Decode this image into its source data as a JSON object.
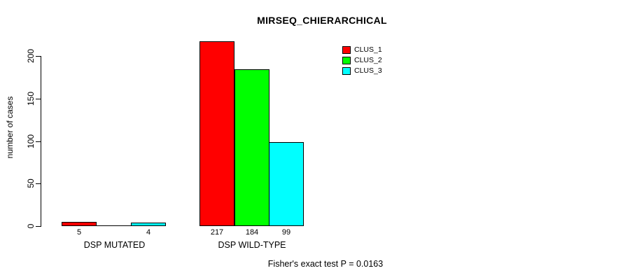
{
  "title": "MIRSEQ_CHIERARCHICAL",
  "ylabel": "number of cases",
  "footer": "Fisher's exact test P = 0.0163",
  "chart_data": {
    "type": "bar",
    "grouped": true,
    "title": "MIRSEQ_CHIERARCHICAL",
    "xlabel": "",
    "ylabel": "number of cases",
    "categories": [
      "DSP MUTATED",
      "DSP WILD-TYPE"
    ],
    "series": [
      {
        "name": "CLUS_1",
        "color": "#ff0000",
        "values": [
          5,
          217
        ]
      },
      {
        "name": "CLUS_2",
        "color": "#00ff00",
        "values": [
          0,
          184
        ]
      },
      {
        "name": "CLUS_3",
        "color": "#00ffff",
        "values": [
          4,
          99
        ]
      }
    ],
    "value_labels": [
      [
        "5",
        "",
        "4"
      ],
      [
        "217",
        "184",
        "99"
      ]
    ],
    "yticks": [
      0,
      50,
      100,
      150,
      200
    ],
    "ylim": [
      0,
      220
    ],
    "grid": false,
    "legend_position": "top-right",
    "annotation": "Fisher's exact test P = 0.0163"
  },
  "legend": {
    "items": [
      {
        "label": "CLUS_1",
        "color": "#ff0000"
      },
      {
        "label": "CLUS_2",
        "color": "#00ff00"
      },
      {
        "label": "CLUS_3",
        "color": "#00ffff"
      }
    ]
  }
}
